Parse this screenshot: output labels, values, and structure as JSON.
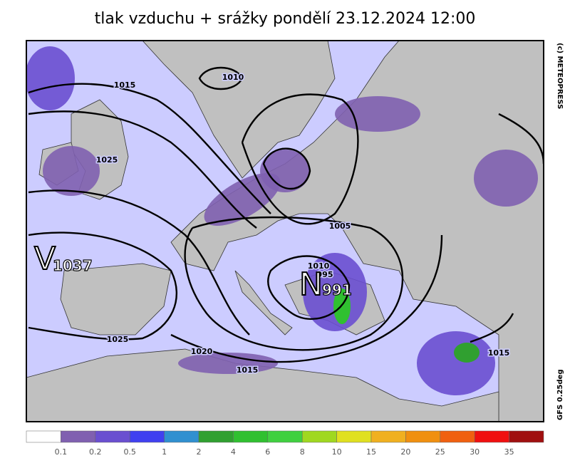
{
  "header": {
    "title": "tlak vzduchu + srážky pondělí 23.12.2024 12:00"
  },
  "credits": {
    "copyright": "(c) METEOPRESS",
    "model": "GFS 0.25deg"
  },
  "pressure_centers": [
    {
      "letter": "V",
      "value": "1037"
    },
    {
      "letter": "N",
      "value": "991"
    }
  ],
  "isobar_labels": [
    "1010",
    "1015",
    "1025",
    "1005",
    "1025",
    "1020",
    "1015",
    "1010",
    "995",
    "1015"
  ],
  "legend": {
    "colors": [
      "#ffffff",
      "#8060b0",
      "#6a4fd0",
      "#4040f0",
      "#3090d0",
      "#30a030",
      "#30c030",
      "#40d040",
      "#a0d820",
      "#e0e020",
      "#f0b020",
      "#f09010",
      "#f06010",
      "#f01010",
      "#a01010"
    ],
    "labels": [
      "0.1",
      "0.2",
      "0.5",
      "1",
      "2",
      "4",
      "6",
      "8",
      "10",
      "15",
      "20",
      "25",
      "30",
      "35"
    ]
  }
}
